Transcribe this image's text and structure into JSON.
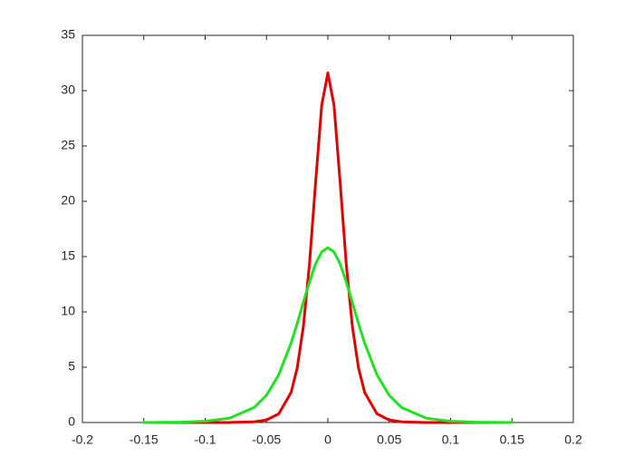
{
  "chart_data": {
    "type": "line",
    "x": [
      -0.15,
      -0.12,
      -0.1,
      -0.08,
      -0.06,
      -0.05,
      -0.04,
      -0.03,
      -0.025,
      -0.02,
      -0.015,
      -0.01,
      -0.005,
      0,
      0.005,
      0.01,
      0.015,
      0.02,
      0.025,
      0.03,
      0.04,
      0.05,
      0.06,
      0.08,
      0.1,
      0.12,
      0.15
    ],
    "series": [
      {
        "color": "#e00000",
        "values": [
          0,
          0,
          0,
          0.005,
          0.063,
          0.225,
          0.79,
          2.71,
          4.92,
          8.64,
          14.3,
          21.7,
          28.7,
          31.6,
          28.7,
          21.7,
          14.3,
          8.64,
          4.92,
          2.71,
          0.79,
          0.225,
          0.063,
          0.005,
          0,
          0,
          0
        ]
      },
      {
        "color": "#22e022",
        "values": [
          0.005,
          0.032,
          0.112,
          0.395,
          1.36,
          2.46,
          4.32,
          7.17,
          8.95,
          10.86,
          12.7,
          14.34,
          15.43,
          15.8,
          15.43,
          14.34,
          12.7,
          10.86,
          8.95,
          7.17,
          4.32,
          2.46,
          1.36,
          0.395,
          0.112,
          0.032,
          0.005
        ]
      }
    ],
    "xlim": [
      -0.2,
      0.2
    ],
    "xticks": [
      -0.2,
      -0.15,
      -0.1,
      -0.05,
      0,
      0.05,
      0.1,
      0.15,
      0.2
    ],
    "ylim": [
      0,
      35
    ],
    "yticks": [
      0,
      5,
      10,
      15,
      20,
      25,
      30,
      35
    ],
    "grid": false
  }
}
